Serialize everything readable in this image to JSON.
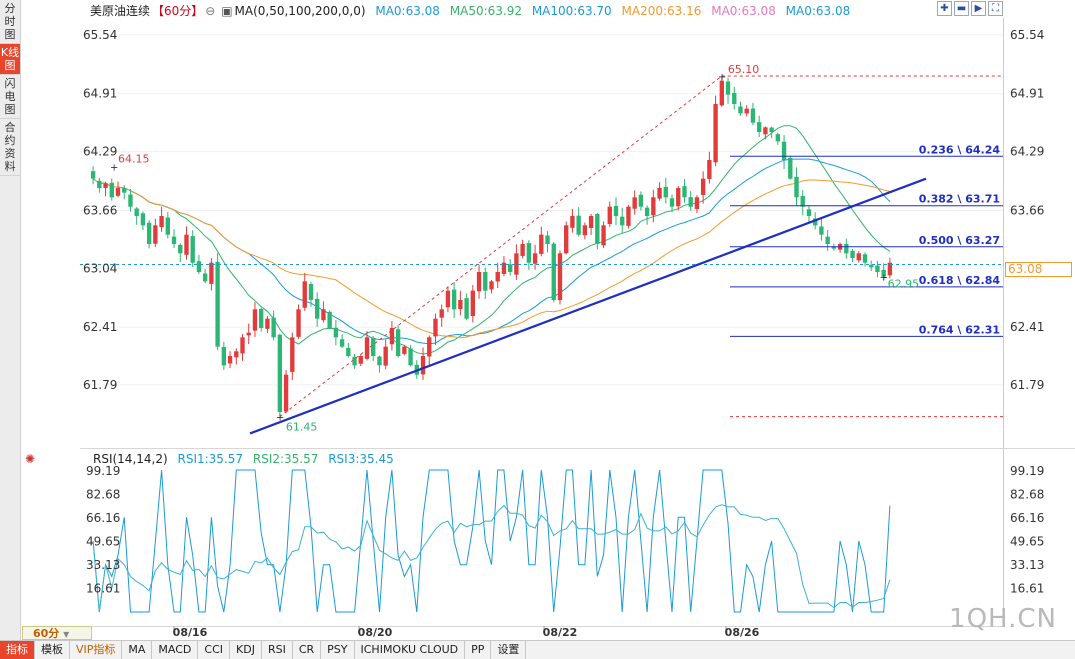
{
  "sidebar": {
    "items": [
      {
        "label": "分时图",
        "active": false
      },
      {
        "label": "K线图",
        "active": true
      },
      {
        "label": "闪电图",
        "active": false
      },
      {
        "label": "合约资料",
        "active": false
      }
    ]
  },
  "header": {
    "symbol": "美原油连续",
    "period": "【60分】",
    "ma_label": "MA(0,50,100,200,0,0)",
    "ma_items": [
      {
        "text": "MA0:63.08",
        "color": "#1a9bd7"
      },
      {
        "text": "MA50:63.92",
        "color": "#33b36b"
      },
      {
        "text": "MA100:63.70",
        "color": "#1a9bd7"
      },
      {
        "text": "MA200:63.16",
        "color": "#f39a2f"
      },
      {
        "text": "MA0:63.08",
        "color": "#e47ab8"
      },
      {
        "text": "MA0:63.08",
        "color": "#1a9bd7"
      }
    ]
  },
  "tools": [
    "plus-icon",
    "minus-icon",
    "step-forward-icon",
    "fullscreen-icon"
  ],
  "colors": {
    "up": "#e23b3b",
    "down": "#2bb673",
    "ma50": "#33b36b",
    "ma100": "#1a9bd7",
    "ma200": "#f39a2f",
    "trendline": "#1f2fbf",
    "fib": "#1f2fbf"
  },
  "price_axis": {
    "ticks": [
      "65.54",
      "64.91",
      "64.29",
      "63.66",
      "63.04",
      "62.41",
      "61.79"
    ],
    "last_price": "63.08"
  },
  "annotations": {
    "high": "65.10",
    "low": "61.45",
    "left_high": "64.15",
    "recent_low": "62.95"
  },
  "fib_levels": [
    {
      "label": "0.236 \\ 64.24"
    },
    {
      "label": "0.382 \\ 63.71"
    },
    {
      "label": "0.500 \\ 63.27"
    },
    {
      "label": "0.618 \\ 62.84"
    },
    {
      "label": "0.764 \\ 62.31"
    }
  ],
  "rsi": {
    "title": "RSI(14,14,2)",
    "items": [
      {
        "text": "RSI1:35.57",
        "color": "#1a9bd7"
      },
      {
        "text": "RSI2:35.57",
        "color": "#33b36b"
      },
      {
        "text": "RSI3:35.45",
        "color": "#1a9bd7"
      }
    ],
    "ticks": [
      "99.19",
      "82.68",
      "66.16",
      "49.65",
      "33.13",
      "16.61"
    ]
  },
  "x_axis": {
    "labels": [
      "08/16",
      "08/20",
      "08/22",
      "08/26"
    ]
  },
  "period_badge": "60分",
  "bottom_tabs": [
    {
      "label": "指标",
      "active": true
    },
    {
      "label": "模板"
    },
    {
      "label": "VIP指标",
      "vip": true
    },
    {
      "label": "MA"
    },
    {
      "label": "MACD"
    },
    {
      "label": "CCI"
    },
    {
      "label": "KDJ"
    },
    {
      "label": "RSI"
    },
    {
      "label": "CR"
    },
    {
      "label": "PSY"
    },
    {
      "label": "ICHIMOKU CLOUD"
    },
    {
      "label": "PP"
    },
    {
      "label": "设置"
    }
  ],
  "watermark": "1QH.CN",
  "chart_data": {
    "type": "candlestick",
    "price_range": [
      61.2,
      65.7
    ],
    "closes": [
      64.0,
      63.9,
      63.95,
      63.8,
      63.9,
      63.85,
      63.7,
      63.6,
      63.5,
      63.3,
      63.5,
      63.6,
      63.4,
      63.3,
      63.2,
      63.4,
      63.1,
      63.0,
      62.9,
      63.1,
      62.2,
      62.0,
      62.1,
      62.15,
      62.3,
      62.35,
      62.6,
      62.4,
      62.5,
      62.3,
      61.5,
      61.9,
      62.3,
      62.6,
      62.9,
      62.7,
      62.5,
      62.6,
      62.4,
      62.3,
      62.2,
      62.1,
      62.0,
      62.1,
      62.3,
      62.1,
      62.0,
      62.2,
      62.4,
      62.1,
      62.2,
      62.0,
      61.9,
      62.1,
      62.3,
      62.5,
      62.6,
      62.8,
      62.6,
      62.7,
      62.5,
      62.8,
      63.0,
      62.8,
      62.9,
      63.0,
      63.1,
      63.0,
      63.2,
      63.3,
      63.1,
      63.2,
      63.4,
      63.3,
      62.7,
      63.2,
      63.5,
      63.6,
      63.4,
      63.5,
      63.6,
      63.3,
      63.5,
      63.7,
      63.6,
      63.5,
      63.7,
      63.8,
      63.7,
      63.6,
      63.8,
      63.9,
      63.8,
      63.7,
      63.9,
      63.8,
      63.7,
      63.8,
      64.0,
      64.2,
      64.8,
      65.05,
      64.9,
      64.8,
      64.7,
      64.75,
      64.6,
      64.5,
      64.55,
      64.5,
      64.4,
      64.2,
      64.0,
      63.8,
      63.7,
      63.6,
      63.5,
      63.4,
      63.3,
      63.25,
      63.3,
      63.2,
      63.15,
      63.2,
      63.1,
      63.05,
      63.0,
      62.95,
      63.1
    ],
    "fib_values": [
      64.24,
      63.71,
      63.27,
      62.84,
      62.31
    ],
    "rsi_range": [
      0,
      100
    ]
  }
}
